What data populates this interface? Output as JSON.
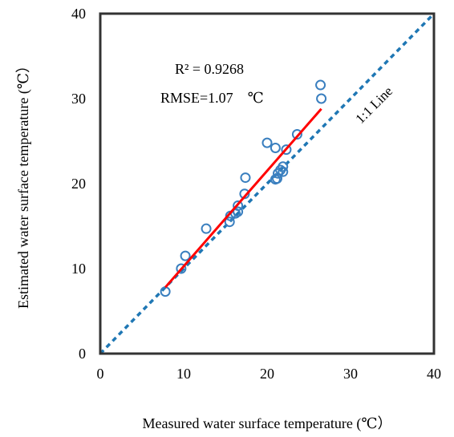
{
  "chart_data": {
    "type": "scatter",
    "xlabel": "Measured water surface temperature (℃）",
    "ylabel": "Estimated water surface temperature (℃）",
    "xlim": [
      0,
      40
    ],
    "ylim": [
      0,
      40
    ],
    "x_ticks": [
      "0",
      "10",
      "20",
      "30",
      "40"
    ],
    "y_ticks": [
      "0",
      "10",
      "20",
      "30",
      "40"
    ],
    "grid": false,
    "legend": "none",
    "annotations": {
      "r2": "R² = 0.9268",
      "rmse": "RMSE=1.07　℃",
      "line_label": "1:1 Line"
    },
    "colors": {
      "points": "#3a7fbf",
      "fit_line": "#ff0000",
      "identity_line": "#1f77b4",
      "frame": "#333333"
    },
    "points": [
      {
        "x": 7.8,
        "y": 7.3
      },
      {
        "x": 9.7,
        "y": 10.0
      },
      {
        "x": 10.2,
        "y": 11.5
      },
      {
        "x": 12.7,
        "y": 14.7
      },
      {
        "x": 15.5,
        "y": 15.5
      },
      {
        "x": 15.6,
        "y": 16.2
      },
      {
        "x": 16.2,
        "y": 16.5
      },
      {
        "x": 16.5,
        "y": 16.7
      },
      {
        "x": 16.5,
        "y": 17.4
      },
      {
        "x": 17.3,
        "y": 18.8
      },
      {
        "x": 17.4,
        "y": 20.7
      },
      {
        "x": 20.0,
        "y": 24.8
      },
      {
        "x": 21.0,
        "y": 24.2
      },
      {
        "x": 21.0,
        "y": 20.5
      },
      {
        "x": 21.2,
        "y": 20.6
      },
      {
        "x": 21.3,
        "y": 21.2
      },
      {
        "x": 21.6,
        "y": 21.6
      },
      {
        "x": 21.9,
        "y": 21.4
      },
      {
        "x": 21.9,
        "y": 22.0
      },
      {
        "x": 22.3,
        "y": 24.0
      },
      {
        "x": 23.6,
        "y": 25.8
      },
      {
        "x": 26.4,
        "y": 31.6
      },
      {
        "x": 26.5,
        "y": 30.0
      }
    ],
    "fit_line": {
      "x": [
        7.8,
        26.5
      ],
      "y": [
        7.8,
        28.8
      ]
    },
    "identity_line": {
      "x": [
        0,
        40
      ],
      "y": [
        0,
        40
      ]
    }
  }
}
